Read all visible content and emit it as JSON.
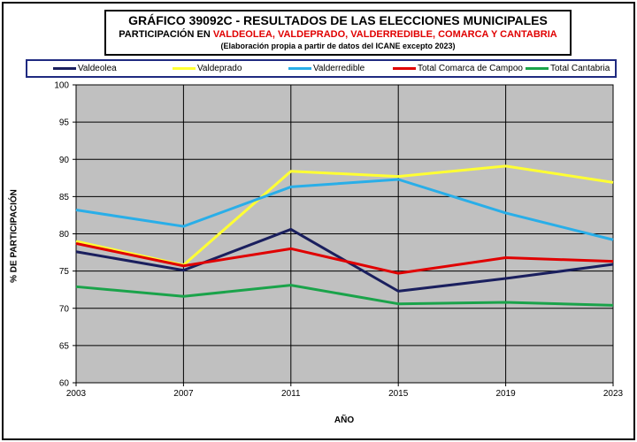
{
  "title": {
    "line1": "GRÁFICO 39092C - RESULTADOS DE LAS ELECCIONES MUNICIPALES",
    "line2_prefix": "PARTICIPACIÓN EN ",
    "line2_red": "VALDEOLEA, VALDEPRADO, VALDERREDIBLE, COMARCA Y CANTABRIA",
    "line3": "(Elaboración propia a partir de datos del ICANE excepto 2023)"
  },
  "chart_data": {
    "type": "line",
    "title": "GRÁFICO 39092C - RESULTADOS DE LAS ELECCIONES MUNICIPALES",
    "xlabel": "AÑO",
    "ylabel": "% DE PARTICIPACIÓN",
    "x": [
      "2003",
      "2007",
      "2011",
      "2015",
      "2019",
      "2023"
    ],
    "ylim": [
      60,
      100
    ],
    "yticks": [
      60,
      65,
      70,
      75,
      80,
      85,
      90,
      95,
      100
    ],
    "grid": true,
    "legend_position": "top",
    "series": [
      {
        "name": "Valdeolea",
        "color": "#1a1f5e",
        "values": [
          77.6,
          75.1,
          80.6,
          72.3,
          74.0,
          75.9
        ]
      },
      {
        "name": "Valdeprado",
        "color": "#ffff33",
        "values": [
          79.0,
          75.8,
          88.4,
          87.7,
          89.1,
          86.9
        ]
      },
      {
        "name": "Valderredible",
        "color": "#29aee8",
        "values": [
          83.2,
          81.0,
          86.3,
          87.3,
          82.8,
          79.2
        ]
      },
      {
        "name": "Total Comarca de Campoo",
        "color": "#e00000",
        "values": [
          78.7,
          75.7,
          78.0,
          74.7,
          76.8,
          76.3
        ]
      },
      {
        "name": "Total Cantabria",
        "color": "#1aa34a",
        "values": [
          72.9,
          71.6,
          73.1,
          70.6,
          70.8,
          70.4
        ]
      }
    ]
  }
}
